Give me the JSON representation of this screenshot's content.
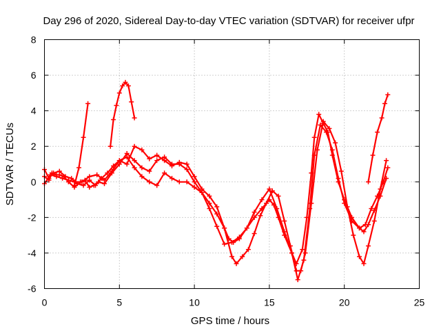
{
  "chart_data": {
    "type": "scatter",
    "title": "Day 296 of 2020, Sidereal Day-to-day VTEC variation (SDTVAR) for receiver ufpr",
    "xlabel": "GPS time / hours",
    "ylabel": "SDTVAR / TECUs",
    "xlim": [
      0,
      25
    ],
    "ylim": [
      -6,
      8
    ],
    "xticks": [
      0,
      5,
      10,
      15,
      20,
      25
    ],
    "yticks": [
      -6,
      -4,
      -2,
      0,
      2,
      4,
      6,
      8
    ],
    "grid": true,
    "marker": "+",
    "color": "#ff0000",
    "series": [
      {
        "name": "trace-1",
        "x": [
          0.0,
          0.3,
          0.5,
          0.8,
          1.0,
          1.3,
          1.6,
          2.0,
          2.4,
          2.7,
          3.0,
          3.3,
          3.6,
          4.0,
          4.5,
          5.0,
          5.5,
          6.0,
          6.5,
          7.0,
          7.5,
          8.0,
          8.5,
          9.0,
          9.5,
          10.0,
          10.5,
          11.0,
          11.5,
          12.0,
          12.3,
          12.6,
          13.0,
          13.5,
          14.0,
          14.5,
          15.0,
          15.3,
          15.6,
          16.0,
          16.5,
          16.8,
          17.2,
          17.5,
          17.8,
          18.0,
          18.3,
          18.6,
          18.9,
          19.2,
          19.6,
          20.0,
          20.5,
          21.0,
          21.3,
          21.6,
          22.0,
          22.4,
          22.8
        ],
        "y": [
          0.3,
          0.1,
          0.5,
          0.4,
          0.4,
          0.3,
          0.0,
          -0.3,
          0.0,
          0.1,
          -0.3,
          -0.2,
          0.0,
          -0.1,
          0.5,
          1.0,
          1.6,
          1.2,
          0.8,
          0.6,
          1.2,
          1.4,
          1.0,
          1.0,
          0.7,
          0.0,
          -0.6,
          -1.2,
          -1.8,
          -2.6,
          -3.2,
          -3.4,
          -3.2,
          -2.6,
          -2.0,
          -1.5,
          -1.0,
          -1.3,
          -2.0,
          -3.0,
          -4.0,
          -4.6,
          -3.8,
          -2.0,
          0.5,
          2.5,
          3.8,
          3.3,
          2.8,
          1.5,
          0.0,
          -1.0,
          -2.0,
          -2.6,
          -2.8,
          -2.4,
          -1.6,
          -0.8,
          0.2
        ]
      },
      {
        "name": "trace-2",
        "x": [
          0.0,
          0.4,
          0.8,
          1.2,
          1.6,
          2.0,
          2.5,
          3.0,
          3.5,
          4.0,
          4.5,
          5.0,
          5.5,
          6.0,
          6.5,
          7.0,
          7.5,
          8.0,
          8.5,
          9.0,
          9.5,
          10.0,
          10.5,
          11.0,
          11.5,
          12.0,
          12.5,
          13.0,
          13.5,
          14.0,
          14.5,
          15.0,
          15.5,
          16.0,
          16.5,
          16.9,
          17.3,
          17.7,
          18.0,
          18.4,
          18.8,
          19.2,
          19.6,
          20.0,
          20.5,
          21.0,
          21.4,
          21.8,
          22.2,
          22.6,
          22.9
        ],
        "y": [
          -0.1,
          0.4,
          0.3,
          0.2,
          0.1,
          0.0,
          0.0,
          0.3,
          0.4,
          0.1,
          0.6,
          1.2,
          1.4,
          0.8,
          0.3,
          0.0,
          -0.2,
          0.5,
          0.2,
          0.0,
          0.0,
          -0.3,
          -0.6,
          -1.5,
          -2.5,
          -3.5,
          -3.4,
          -3.1,
          -2.6,
          -1.7,
          -1.0,
          -0.4,
          -1.5,
          -2.8,
          -4.0,
          -5.5,
          -4.4,
          -1.5,
          1.5,
          3.2,
          2.8,
          1.8,
          0.2,
          -1.2,
          -2.2,
          -2.6,
          -2.4,
          -1.5,
          -0.8,
          0.0,
          0.8
        ]
      },
      {
        "name": "trace-3",
        "x": [
          0.0,
          0.3,
          0.6,
          1.0,
          1.4,
          1.8,
          2.2,
          2.6,
          3.0,
          3.4,
          3.8,
          4.2,
          4.6,
          5.0,
          5.5,
          6.0,
          6.5,
          7.0,
          7.5,
          8.0,
          8.5,
          9.0,
          9.5,
          10.0,
          10.5,
          11.0,
          11.5,
          12.0,
          12.5,
          12.8,
          13.2,
          13.6,
          14.0,
          14.4,
          14.8,
          15.2,
          15.6,
          16.0,
          16.4,
          16.8,
          17.1,
          17.4,
          17.8,
          18.2,
          18.6,
          19.0,
          19.4,
          19.8,
          20.2,
          20.6,
          21.0,
          21.3,
          21.6,
          22.0,
          22.4,
          22.8
        ],
        "y": [
          0.7,
          0.2,
          0.5,
          0.6,
          0.3,
          0.2,
          -0.1,
          -0.2,
          0.1,
          -0.2,
          0.2,
          0.5,
          0.9,
          1.2,
          1.0,
          2.0,
          1.8,
          1.3,
          1.5,
          1.2,
          0.9,
          1.1,
          1.0,
          0.3,
          -0.4,
          -0.8,
          -1.4,
          -2.6,
          -4.2,
          -4.6,
          -4.2,
          -3.8,
          -2.9,
          -1.9,
          -1.2,
          -0.5,
          -0.8,
          -2.2,
          -3.6,
          -5.0,
          -5.0,
          -4.0,
          -1.2,
          1.8,
          3.4,
          3.0,
          2.2,
          0.6,
          -1.4,
          -3.0,
          -4.2,
          -4.6,
          -3.6,
          -2.2,
          -0.4,
          1.2
        ]
      },
      {
        "name": "trace-4",
        "x": [
          2.0,
          2.3,
          2.6,
          2.9
        ],
        "y": [
          -0.2,
          0.8,
          2.5,
          4.4
        ]
      },
      {
        "name": "trace-5",
        "x": [
          4.4,
          4.6,
          4.8,
          5.0,
          5.2,
          5.4,
          5.6,
          5.8,
          6.0
        ],
        "y": [
          2.0,
          3.5,
          4.3,
          5.0,
          5.4,
          5.6,
          5.4,
          4.5,
          3.6
        ]
      },
      {
        "name": "trace-6",
        "x": [
          21.6,
          21.9,
          22.2,
          22.5,
          22.7,
          22.9
        ],
        "y": [
          0.0,
          1.5,
          2.8,
          3.6,
          4.4,
          4.9
        ]
      }
    ]
  }
}
